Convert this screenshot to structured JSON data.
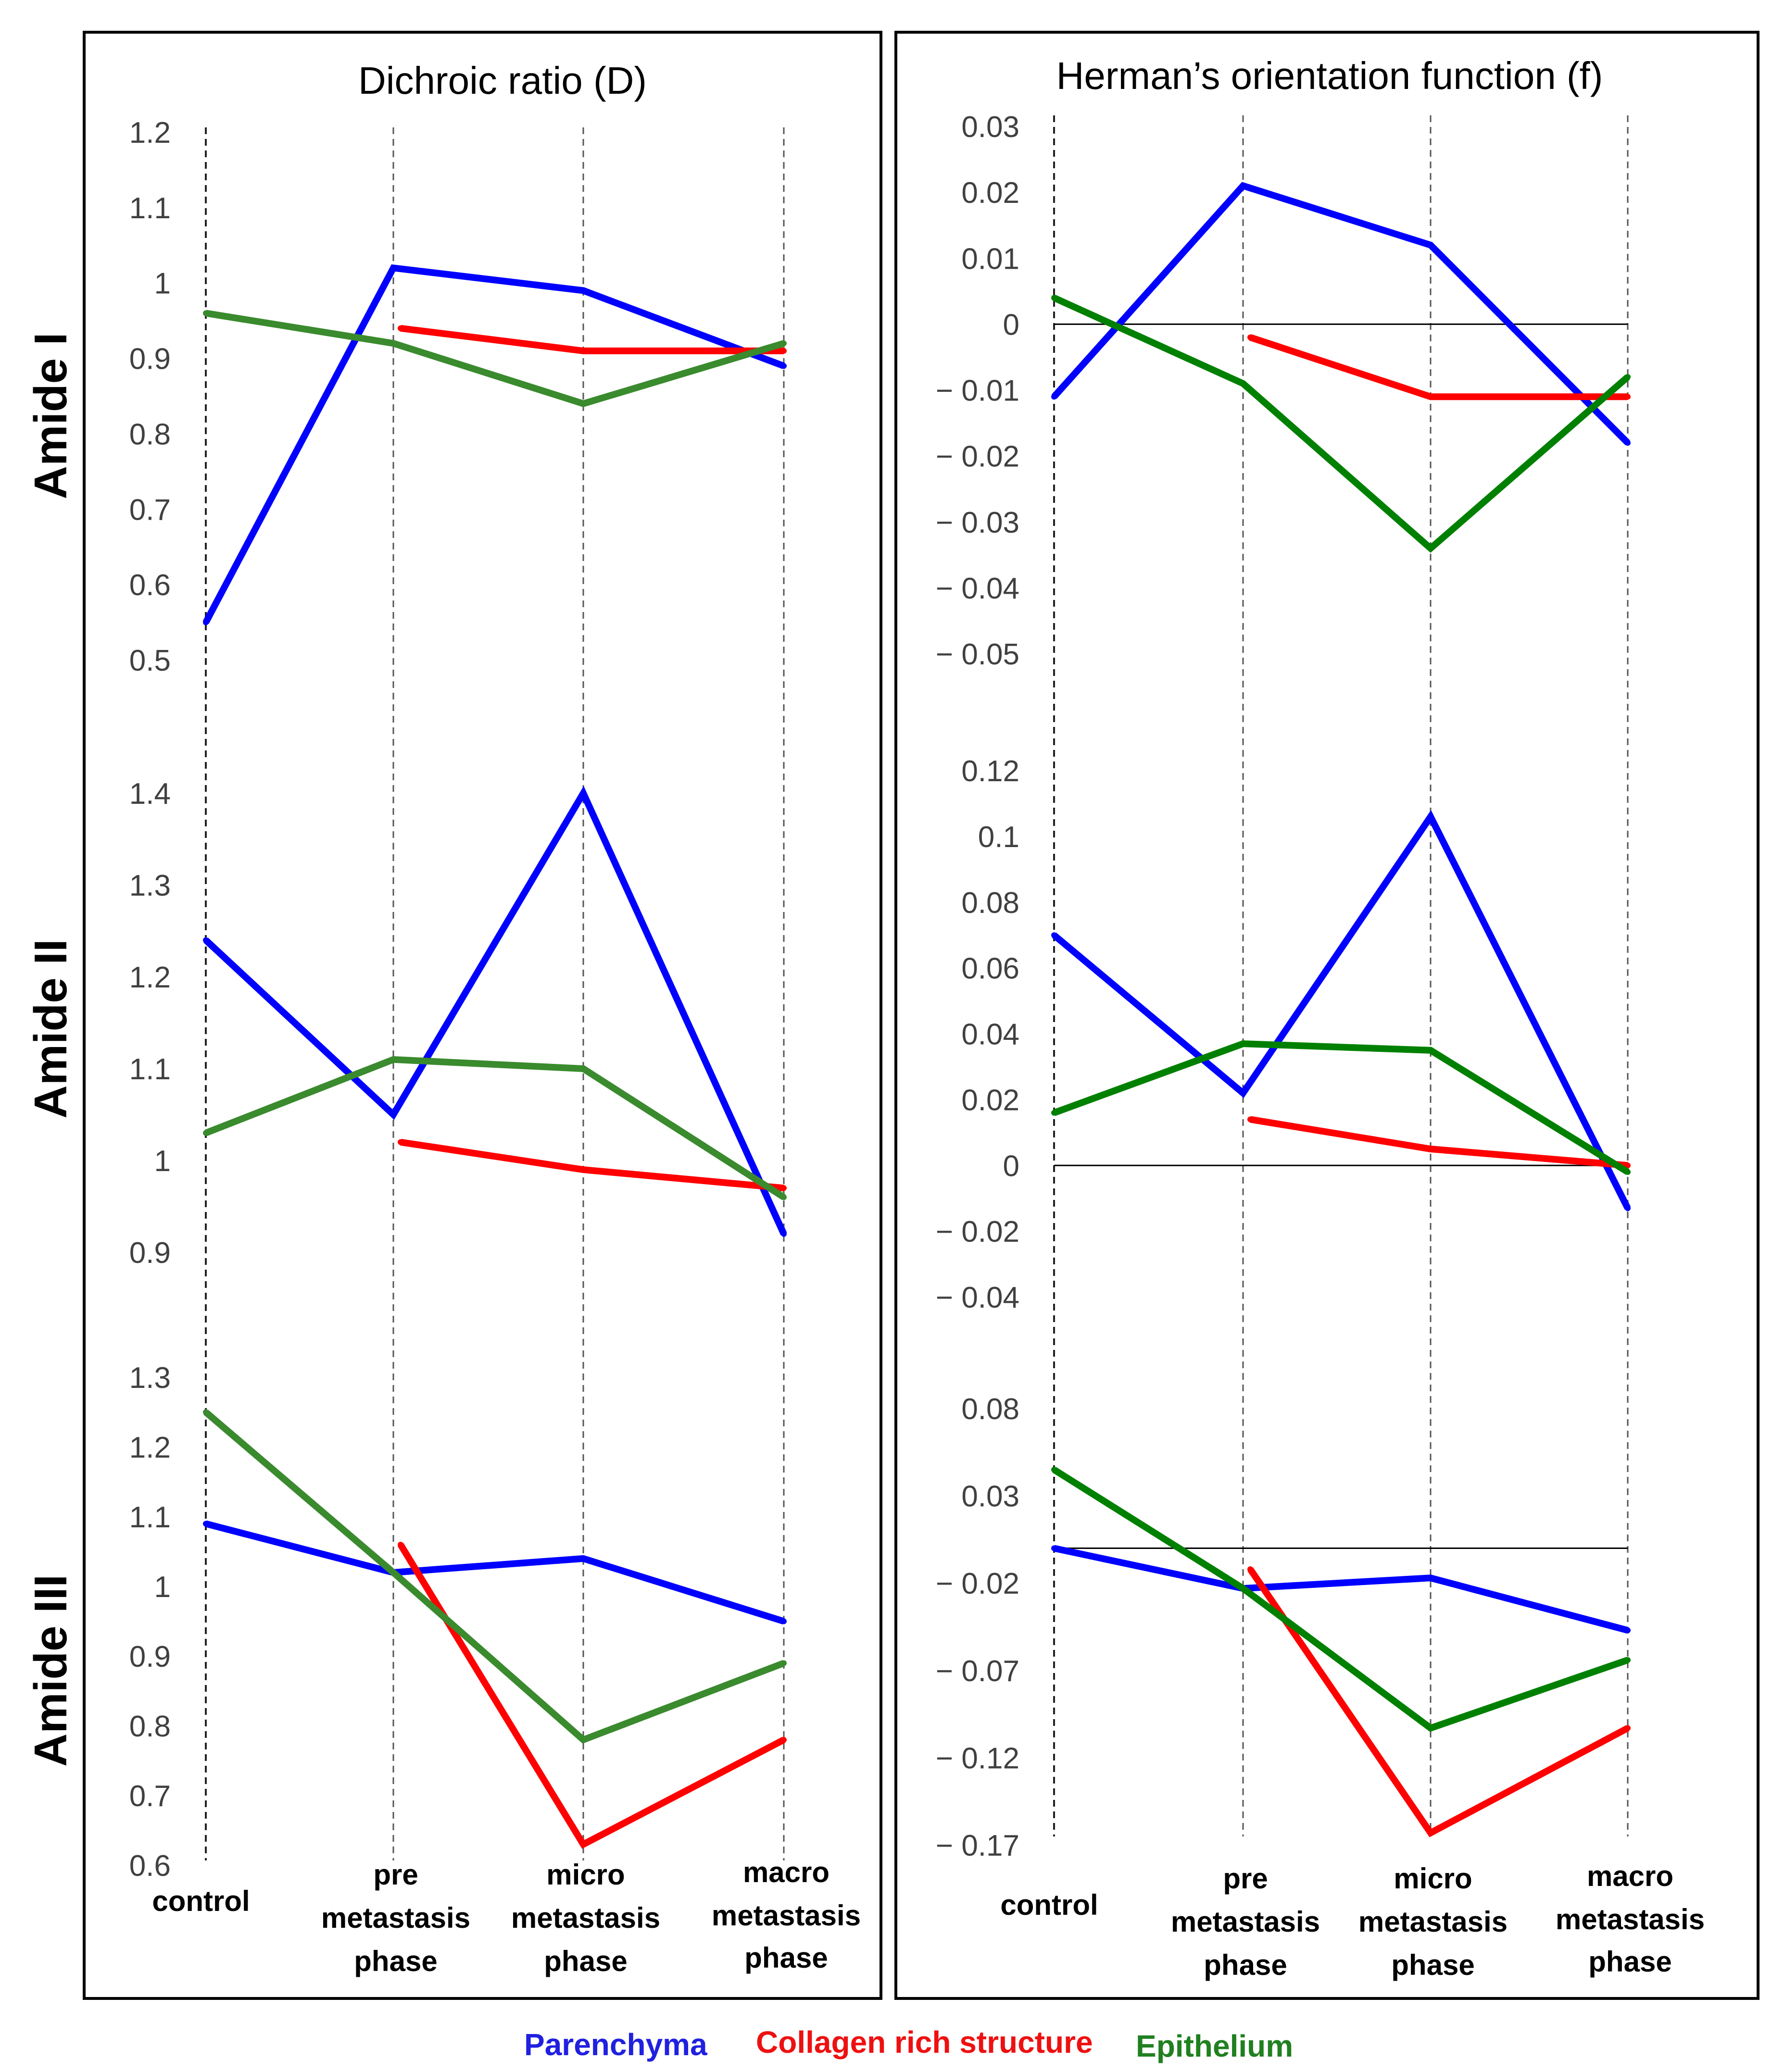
{
  "chart_data": {
    "type": "line",
    "categories": [
      {
        "lines": [
          "control"
        ]
      },
      {
        "lines": [
          "pre",
          "metastasis",
          "phase"
        ]
      },
      {
        "lines": [
          "micro",
          "metastasis",
          "phase"
        ]
      },
      {
        "lines": [
          "macro",
          "metastasis",
          "phase"
        ]
      }
    ],
    "panels": [
      {
        "title": "Dichroic ratio (D)"
      },
      {
        "title": "Herman’s orientation function (f)"
      }
    ],
    "rows": [
      {
        "label": "Amide I"
      },
      {
        "label": "Amide II"
      },
      {
        "label": "Amide III"
      }
    ],
    "legend": [
      {
        "name": "Parenchyma",
        "color": "#0000ff"
      },
      {
        "name": "Collagen rich structure",
        "color": "#ff0000"
      },
      {
        "name": "Epithelium",
        "color": "#008000"
      }
    ],
    "subplots": [
      {
        "id": "amide1-D",
        "panel": 0,
        "row": 0,
        "ylim": [
          0.5,
          1.2
        ],
        "ticks": [
          {
            "v": 1.2,
            "label": "1.2"
          },
          {
            "v": 1.1,
            "label": "1.1"
          },
          {
            "v": 1.0,
            "label": "1"
          },
          {
            "v": 0.9,
            "label": "0.9"
          },
          {
            "v": 0.8,
            "label": "0.8"
          },
          {
            "v": 0.7,
            "label": "0.7"
          },
          {
            "v": 0.6,
            "label": "0.6"
          },
          {
            "v": 0.5,
            "label": "0.5"
          }
        ],
        "series": [
          {
            "name": "Parenchyma",
            "color": "#0000ff",
            "values": [
              0.55,
              1.02,
              0.99,
              0.89
            ]
          },
          {
            "name": "Collagen rich structure",
            "color": "#ff0000",
            "values": [
              null,
              0.94,
              0.91,
              0.91
            ]
          },
          {
            "name": "Epithelium",
            "color": "#3a8a2e",
            "values": [
              0.96,
              0.92,
              0.84,
              0.92
            ]
          }
        ]
      },
      {
        "id": "amide2-D",
        "panel": 0,
        "row": 1,
        "ylim": [
          0.9,
          1.4
        ],
        "ticks": [
          {
            "v": 1.4,
            "label": "1.4"
          },
          {
            "v": 1.3,
            "label": "1.3"
          },
          {
            "v": 1.2,
            "label": "1.2"
          },
          {
            "v": 1.1,
            "label": "1.1"
          },
          {
            "v": 1.0,
            "label": "1"
          },
          {
            "v": 0.9,
            "label": "0.9"
          }
        ],
        "series": [
          {
            "name": "Parenchyma",
            "color": "#0000ff",
            "values": [
              1.24,
              1.05,
              1.4,
              0.92
            ]
          },
          {
            "name": "Collagen rich structure",
            "color": "#ff0000",
            "values": [
              null,
              1.02,
              0.99,
              0.97
            ]
          },
          {
            "name": "Epithelium",
            "color": "#3a8a2e",
            "values": [
              1.03,
              1.11,
              1.1,
              0.96
            ]
          }
        ]
      },
      {
        "id": "amide3-D",
        "panel": 0,
        "row": 2,
        "ylim": [
          0.6,
          1.3
        ],
        "ticks": [
          {
            "v": 1.3,
            "label": "1.3"
          },
          {
            "v": 1.2,
            "label": "1.2"
          },
          {
            "v": 1.1,
            "label": "1.1"
          },
          {
            "v": 1.0,
            "label": "1"
          },
          {
            "v": 0.9,
            "label": "0.9"
          },
          {
            "v": 0.8,
            "label": "0.8"
          },
          {
            "v": 0.7,
            "label": "0.7"
          },
          {
            "v": 0.6,
            "label": "0.6"
          }
        ],
        "series": [
          {
            "name": "Parenchyma",
            "color": "#0000ff",
            "values": [
              1.09,
              1.02,
              1.04,
              0.95
            ]
          },
          {
            "name": "Collagen rich structure",
            "color": "#ff0000",
            "values": [
              null,
              1.06,
              0.63,
              0.78
            ]
          },
          {
            "name": "Epithelium",
            "color": "#3a8a2e",
            "values": [
              1.25,
              1.02,
              0.78,
              0.89
            ]
          }
        ]
      },
      {
        "id": "amide1-f",
        "panel": 1,
        "row": 0,
        "ylim": [
          -0.05,
          0.03
        ],
        "zero_line": true,
        "ticks": [
          {
            "v": 0.03,
            "label": "0.03"
          },
          {
            "v": 0.02,
            "label": "0.02"
          },
          {
            "v": 0.01,
            "label": "0.01"
          },
          {
            "v": 0.0,
            "label": "0"
          },
          {
            "v": -0.01,
            "label": "− 0.01"
          },
          {
            "v": -0.02,
            "label": "− 0.02"
          },
          {
            "v": -0.03,
            "label": "− 0.03"
          },
          {
            "v": -0.04,
            "label": "− 0.04"
          },
          {
            "v": -0.05,
            "label": "− 0.05"
          }
        ],
        "series": [
          {
            "name": "Parenchyma",
            "color": "#0000ff",
            "values": [
              -0.011,
              0.021,
              0.012,
              -0.018
            ]
          },
          {
            "name": "Collagen rich structure",
            "color": "#ff0000",
            "values": [
              null,
              -0.002,
              -0.011,
              -0.011
            ]
          },
          {
            "name": "Epithelium",
            "color": "#008000",
            "values": [
              0.004,
              -0.009,
              -0.034,
              -0.008
            ]
          }
        ]
      },
      {
        "id": "amide2-f",
        "panel": 1,
        "row": 1,
        "ylim": [
          -0.04,
          0.12
        ],
        "zero_line": true,
        "ticks": [
          {
            "v": 0.12,
            "label": "0.12"
          },
          {
            "v": 0.1,
            "label": "0.1"
          },
          {
            "v": 0.08,
            "label": "0.08"
          },
          {
            "v": 0.06,
            "label": "0.06"
          },
          {
            "v": 0.04,
            "label": "0.04"
          },
          {
            "v": 0.02,
            "label": "0.02"
          },
          {
            "v": 0.0,
            "label": "0"
          },
          {
            "v": -0.02,
            "label": "− 0.02"
          },
          {
            "v": -0.04,
            "label": "− 0.04"
          }
        ],
        "series": [
          {
            "name": "Parenchyma",
            "color": "#0000ff",
            "values": [
              0.07,
              0.022,
              0.106,
              -0.013
            ]
          },
          {
            "name": "Collagen rich structure",
            "color": "#ff0000",
            "values": [
              null,
              0.014,
              0.005,
              0.0
            ]
          },
          {
            "name": "Epithelium",
            "color": "#008000",
            "values": [
              0.016,
              0.037,
              0.035,
              -0.002
            ]
          }
        ]
      },
      {
        "id": "amide3-f",
        "panel": 1,
        "row": 2,
        "ylim": [
          -0.17,
          0.08
        ],
        "zero_line": true,
        "ticks": [
          {
            "v": 0.08,
            "label": "0.08"
          },
          {
            "v": 0.03,
            "label": "0.03"
          },
          {
            "v": -0.02,
            "label": "− 0.02"
          },
          {
            "v": -0.07,
            "label": "− 0.07"
          },
          {
            "v": -0.12,
            "label": "− 0.12"
          },
          {
            "v": -0.17,
            "label": "− 0.17"
          }
        ],
        "series": [
          {
            "name": "Parenchyma",
            "color": "#0000ff",
            "values": [
              0.0,
              -0.023,
              -0.017,
              -0.047
            ]
          },
          {
            "name": "Collagen rich structure",
            "color": "#ff0000",
            "values": [
              null,
              -0.012,
              -0.163,
              -0.103
            ]
          },
          {
            "name": "Epithelium",
            "color": "#008000",
            "values": [
              0.045,
              -0.023,
              -0.103,
              -0.064
            ]
          }
        ]
      }
    ]
  }
}
